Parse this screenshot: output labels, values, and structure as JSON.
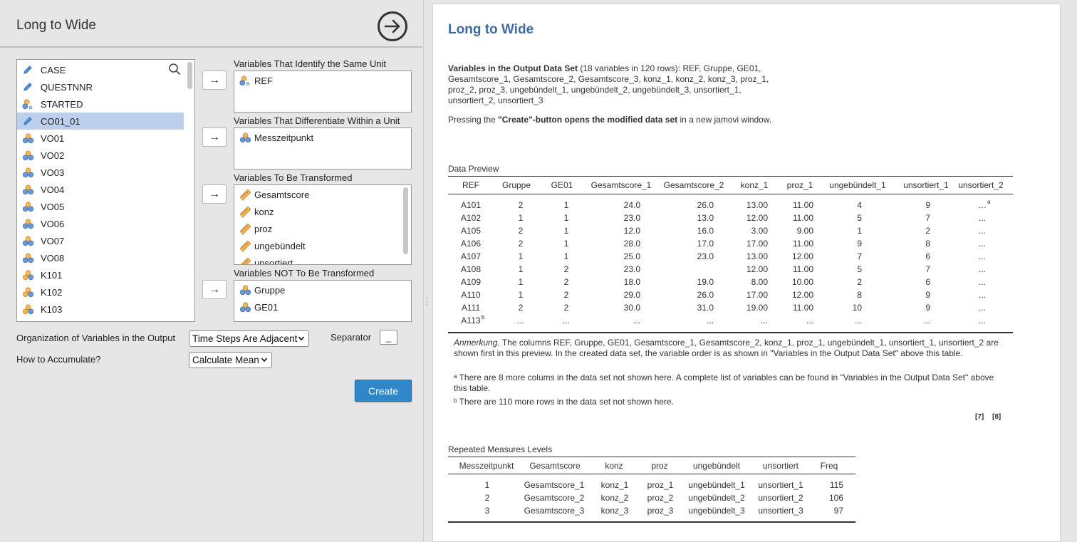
{
  "colors": {
    "accent": "#2f86c9",
    "title": "#3e6da6",
    "selected_row": "#bcd0ee",
    "panel_bg": "#e6e6e6"
  },
  "options": {
    "title": "Long to Wide",
    "variables": [
      {
        "name": "CASE",
        "icon": "id-pencil-icon"
      },
      {
        "name": "QUESTNNR",
        "icon": "id-pencil-icon"
      },
      {
        "name": "STARTED",
        "icon": "nominal-text-icon"
      },
      {
        "name": "CO01_01",
        "icon": "id-pencil-icon",
        "selected": true
      },
      {
        "name": "VO01",
        "icon": "nominal-icon"
      },
      {
        "name": "VO02",
        "icon": "nominal-icon"
      },
      {
        "name": "VO03",
        "icon": "nominal-icon"
      },
      {
        "name": "VO04",
        "icon": "nominal-icon"
      },
      {
        "name": "VO05",
        "icon": "nominal-icon"
      },
      {
        "name": "VO06",
        "icon": "nominal-icon"
      },
      {
        "name": "VO07",
        "icon": "nominal-icon"
      },
      {
        "name": "VO08",
        "icon": "nominal-icon"
      },
      {
        "name": "K101",
        "icon": "ordinal-icon"
      },
      {
        "name": "K102",
        "icon": "ordinal-icon"
      },
      {
        "name": "K103",
        "icon": "ordinal-icon"
      }
    ],
    "boxes": {
      "identify": {
        "label": "Variables That Identify the Same Unit",
        "items": [
          {
            "name": "REF",
            "icon": "nominal-text-icon"
          }
        ]
      },
      "differentiate": {
        "label": "Variables That Differentiate Within a Unit",
        "items": [
          {
            "name": "Messzeitpunkt",
            "icon": "nominal-icon"
          }
        ]
      },
      "transform": {
        "label": "Variables To Be Transformed",
        "items": [
          {
            "name": "Gesamtscore",
            "icon": "continuous-icon"
          },
          {
            "name": "konz",
            "icon": "continuous-icon"
          },
          {
            "name": "proz",
            "icon": "continuous-icon"
          },
          {
            "name": "ungebündelt",
            "icon": "continuous-icon"
          },
          {
            "name": "unsortiert",
            "icon": "continuous-icon"
          }
        ]
      },
      "not_transform": {
        "label": "Variables NOT To Be Transformed",
        "items": [
          {
            "name": "Gruppe",
            "icon": "nominal-icon"
          },
          {
            "name": "GE01",
            "icon": "nominal-icon"
          }
        ]
      }
    },
    "organization_label": "Organization of Variables in the Output",
    "organization_value": "Time Steps Are Adjacent",
    "separator_label": "Separator",
    "separator_value": "_",
    "accumulate_label": "How to Accumulate?",
    "accumulate_value": "Calculate Mean",
    "create_label": "Create"
  },
  "results": {
    "title": "Long to Wide",
    "output_heading": "Variables in the Output Data Set",
    "output_line1_rest": " (18 variables in 120 rows): REF, Gruppe, GE01,",
    "output_line2": "Gesamtscore_1, Gesamtscore_2, Gesamtscore_3, konz_1, konz_2, konz_3, proz_1,",
    "output_line3": "proz_2, proz_3, ungebündelt_1, ungebündelt_2, ungebündelt_3, unsortiert_1,",
    "output_line4": "unsortiert_2, unsortiert_3",
    "pressing_pre": "Pressing the ",
    "pressing_bold": "\"Create\"-button opens the modified data set",
    "pressing_post": " in a new jamovi window.",
    "preview_title": "Data Preview",
    "preview_headers": [
      "REF",
      "Gruppe",
      "GE01",
      "Gesamtscore_1",
      "Gesamtscore_2",
      "konz_1",
      "proz_1",
      "ungebündelt_1",
      "unsortiert_1",
      "unsortiert_2"
    ],
    "preview_rows": [
      [
        "A101",
        "2",
        "1",
        "24.0",
        "26.0",
        "13.00",
        "11.00",
        "4",
        "9",
        "…"
      ],
      [
        "A102",
        "1",
        "1",
        "23.0",
        "13.0",
        "12.00",
        "11.00",
        "5",
        "7",
        "..."
      ],
      [
        "A105",
        "2",
        "1",
        "12.0",
        "16.0",
        "3.00",
        "9.00",
        "1",
        "2",
        "..."
      ],
      [
        "A106",
        "2",
        "1",
        "28.0",
        "17.0",
        "17.00",
        "11.00",
        "9",
        "8",
        "..."
      ],
      [
        "A107",
        "1",
        "1",
        "25.0",
        "23.0",
        "13.00",
        "12.00",
        "7",
        "6",
        "..."
      ],
      [
        "A108",
        "1",
        "2",
        "23.0",
        "",
        "12.00",
        "11.00",
        "5",
        "7",
        "..."
      ],
      [
        "A109",
        "1",
        "2",
        "18.0",
        "19.0",
        "8.00",
        "10.00",
        "2",
        "6",
        "..."
      ],
      [
        "A110",
        "1",
        "2",
        "29.0",
        "26.0",
        "17.00",
        "12.00",
        "8",
        "9",
        "..."
      ],
      [
        "A111",
        "2",
        "2",
        "30.0",
        "31.0",
        "19.00",
        "11.00",
        "10",
        "9",
        "..."
      ],
      [
        "A113",
        "...",
        "...",
        "...",
        "...",
        "...",
        "...",
        "...",
        "...",
        "..."
      ]
    ],
    "sup_a": "a",
    "sup_b": "b",
    "note_italic": "Anmerkung.",
    "note_text": " The columns REF, Gruppe, GE01, Gesamtscore_1, Gesamtscore_2, konz_1, proz_1, ungebündelt_1, unsortiert_1, unsortiert_2 are shown first in this preview. In the created data set, the variable order is as shown in \"Variables in the Output Data Set\" above this table.",
    "note_a": "ᵃ There are 8 more colums in the data set not shown here. A complete list of variables can be found in \"Variables in the Output Data Set\" above this table.",
    "note_b": "ᵇ There are 110 more rows in the data set not shown here.",
    "ref7": "[7]",
    "ref8": "[8]",
    "levels_title": "Repeated Measures Levels",
    "levels_headers": [
      "Messzeitpunkt",
      "Gesamtscore",
      "konz",
      "proz",
      "ungebündelt",
      "unsortiert",
      "Freq"
    ],
    "levels_rows": [
      [
        "1",
        "Gesamtscore_1",
        "konz_1",
        "proz_1",
        "ungebündelt_1",
        "unsortiert_1",
        "115"
      ],
      [
        "2",
        "Gesamtscore_2",
        "konz_2",
        "proz_2",
        "ungebündelt_2",
        "unsortiert_2",
        "106"
      ],
      [
        "3",
        "Gesamtscore_3",
        "konz_3",
        "proz_3",
        "ungebündelt_3",
        "unsortiert_3",
        "97"
      ]
    ]
  }
}
